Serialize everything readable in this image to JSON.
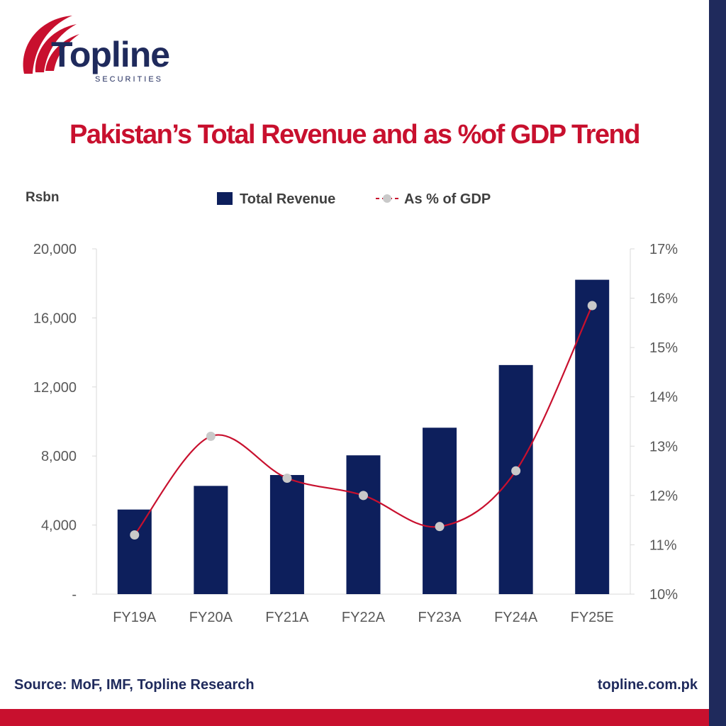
{
  "brand": {
    "name": "Topline",
    "subtitle": "SECURITIES",
    "navy": "#1f2a5c",
    "red": "#c8102e"
  },
  "chart_data": {
    "type": "bar",
    "title": "Pakistan’s Total Revenue and as %of GDP Trend",
    "ylabel": "Rsbn",
    "categories": [
      "FY19A",
      "FY20A",
      "FY21A",
      "FY22A",
      "FY23A",
      "FY24A",
      "FY25E"
    ],
    "series": [
      {
        "name": "Total Revenue",
        "type": "bar",
        "axis": "left",
        "color": "#0d1f5c",
        "values": [
          4900,
          6270,
          6900,
          8040,
          9640,
          13270,
          18210
        ]
      },
      {
        "name": "As % of GDP",
        "type": "line",
        "axis": "right",
        "color": "#c8102e",
        "marker_color": "#c9c9c9",
        "values": [
          11.2,
          13.2,
          12.35,
          12.0,
          11.37,
          12.5,
          15.85
        ]
      }
    ],
    "ylim": [
      0,
      20000
    ],
    "yticks": [
      "-",
      "4,000",
      "8,000",
      "12,000",
      "16,000",
      "20,000"
    ],
    "y2lim": [
      10,
      17
    ],
    "y2ticks": [
      "10%",
      "11%",
      "12%",
      "13%",
      "14%",
      "15%",
      "16%",
      "17%"
    ],
    "legend_position": "top-center",
    "grid": false
  },
  "footer": {
    "source": "Source: MoF, IMF, Topline Research",
    "url": "topline.com.pk"
  }
}
